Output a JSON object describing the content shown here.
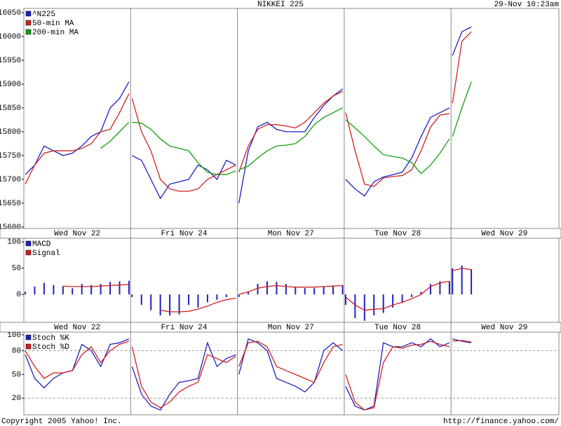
{
  "header": {
    "title": "NIKKEI 225",
    "timestamp": "29-Nov 10:23am"
  },
  "chart_data": [
    {
      "type": "combo",
      "categories": [
        "Wed Nov 22",
        "Fri Nov 24",
        "Mon Nov 27",
        "Tue Nov 28",
        "Wed Nov 29"
      ],
      "ylim": [
        15597,
        16059
      ],
      "yticks": [
        15600,
        15650,
        15700,
        15750,
        15800,
        15850,
        15900,
        15950,
        16000,
        16050
      ],
      "series": [
        {
          "name": "^N225",
          "color": "#2020c0",
          "type": "line",
          "values": [
            [
              15710,
              15730,
              15770,
              15760,
              15750,
              15755,
              15770,
              15790,
              15800,
              15850,
              15870,
              15905
            ],
            [
              15750,
              15740,
              15700,
              15660,
              15690,
              15695,
              15700,
              15730,
              15720,
              15700,
              15740,
              15730
            ],
            [
              15650,
              15760,
              15810,
              15820,
              15805,
              15800,
              15800,
              15800,
              15830,
              15855,
              15875,
              15890
            ],
            [
              15700,
              15680,
              15665,
              15695,
              15705,
              15710,
              15715,
              15745,
              15790,
              15830,
              15840,
              15850
            ],
            [
              15960,
              16010,
              16020
            ]
          ]
        },
        {
          "name": "50-min MA",
          "color": "#d02020",
          "type": "line",
          "values": [
            [
              15690,
              15730,
              15755,
              15760,
              15760,
              15760,
              15765,
              15775,
              15800,
              15805,
              15840,
              15880
            ],
            [
              15870,
              15800,
              15760,
              15700,
              15680,
              15675,
              15675,
              15680,
              15700,
              15710,
              15720,
              15730
            ],
            [
              15715,
              15770,
              15805,
              15815,
              15815,
              15812,
              15808,
              15820,
              15840,
              15860,
              15875,
              15885
            ],
            [
              15840,
              15760,
              15690,
              15685,
              15703,
              15706,
              15708,
              15720,
              15760,
              15810,
              15835,
              15838
            ],
            [
              15860,
              15990,
              16010
            ]
          ]
        },
        {
          "name": "200-min MA",
          "color": "#10a010",
          "type": "line",
          "values": [
            [
              null,
              null,
              null,
              null,
              null,
              null,
              null,
              null,
              15765,
              15780,
              15800,
              15820
            ],
            [
              15820,
              15818,
              15805,
              15785,
              15770,
              15765,
              15760,
              15735,
              15715,
              15710,
              15710,
              15718
            ],
            [
              15720,
              15728,
              15745,
              15760,
              15770,
              15772,
              15775,
              15790,
              15815,
              15830,
              15840,
              15850
            ],
            [
              15825,
              15808,
              15790,
              15770,
              15752,
              15748,
              15745,
              15735,
              15712,
              15730,
              15755,
              15785
            ],
            [
              15790,
              15850,
              15905
            ]
          ]
        }
      ]
    },
    {
      "type": "combo",
      "categories": [
        "Wed Nov 22",
        "Fri Nov 24",
        "Mon Nov 27",
        "Tue Nov 28",
        "Wed Nov 29"
      ],
      "ylim": [
        -53,
        107
      ],
      "yticks": [
        0,
        50,
        100
      ],
      "series": [
        {
          "name": "MACD",
          "color": "#2020c0",
          "type": "bar",
          "values": [
            [
              5,
              15,
              22,
              18,
              15,
              12,
              20,
              18,
              20,
              24,
              25,
              26
            ],
            [
              -5,
              -20,
              -30,
              -40,
              -40,
              -38,
              -20,
              -25,
              -15,
              -10,
              -5,
              0
            ],
            [
              -5,
              5,
              20,
              25,
              24,
              20,
              15,
              12,
              12,
              15,
              17,
              18
            ],
            [
              -20,
              -45,
              -50,
              -40,
              -35,
              -25,
              -15,
              -5,
              5,
              20,
              25,
              25
            ],
            [
              50,
              55,
              48
            ]
          ]
        },
        {
          "name": "Signal",
          "color": "#d02020",
          "type": "line",
          "values": [
            [
              null,
              null,
              null,
              null,
              16,
              15,
              15,
              15,
              16,
              17,
              18,
              19
            ],
            [
              null,
              null,
              null,
              -30,
              -33,
              -33,
              -32,
              -28,
              -22,
              -15,
              -10,
              -7
            ],
            [
              0,
              5,
              12,
              15,
              17,
              15,
              14,
              14,
              14,
              15,
              16,
              17
            ],
            [
              -5,
              -20,
              -30,
              -28,
              -27,
              -20,
              -15,
              -8,
              0,
              15,
              22,
              25
            ],
            [
              45,
              50,
              47
            ]
          ]
        }
      ]
    },
    {
      "type": "combo",
      "ylim": [
        -1,
        103.5
      ],
      "yticks": [
        20,
        50,
        80,
        100
      ],
      "reference_lines": [
        20,
        80
      ],
      "series": [
        {
          "name": "Stoch %K",
          "color": "#2020c0",
          "type": "line",
          "values": [
            [
              75,
              45,
              33,
              45,
              52,
              55,
              88,
              80,
              60,
              88,
              90,
              95
            ],
            [
              60,
              25,
              10,
              5,
              25,
              40,
              42,
              45,
              90,
              60,
              70,
              75
            ],
            [
              50,
              95,
              90,
              80,
              45,
              40,
              35,
              28,
              40,
              80,
              90,
              80
            ],
            [
              35,
              10,
              5,
              10,
              90,
              85,
              85,
              90,
              85,
              95,
              85,
              90
            ],
            [
              95,
              92,
              90
            ]
          ]
        },
        {
          "name": "Stoch %D",
          "color": "#d02020",
          "type": "line",
          "values": [
            [
              80,
              60,
              45,
              52,
              52,
              55,
              75,
              85,
              65,
              80,
              88,
              92
            ],
            [
              85,
              35,
              15,
              8,
              15,
              28,
              35,
              40,
              75,
              70,
              65,
              73
            ],
            [
              60,
              90,
              92,
              85,
              60,
              55,
              50,
              45,
              40,
              65,
              85,
              88
            ],
            [
              50,
              15,
              5,
              8,
              65,
              85,
              83,
              87,
              88,
              92,
              88,
              85
            ],
            [
              92,
              93,
              91
            ]
          ]
        }
      ]
    }
  ],
  "footer": {
    "copyright": "Copyright 2005 Yahoo! Inc.",
    "url": "http://finance.yahoo.com/"
  }
}
